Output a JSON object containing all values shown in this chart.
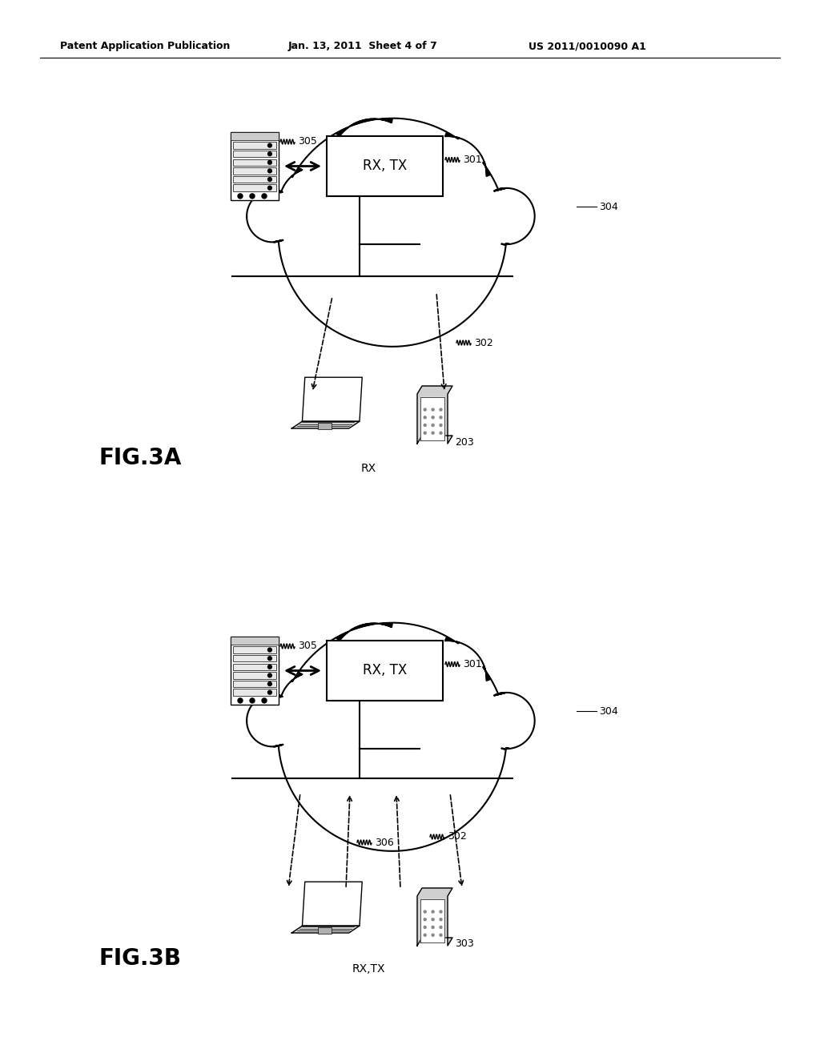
{
  "bg_color": "#ffffff",
  "header_text": "Patent Application Publication",
  "header_date": "Jan. 13, 2011  Sheet 4 of 7",
  "header_patent": "US 2011/0010090 A1",
  "fig3a_label": "FIG.3A",
  "fig3b_label": "FIG.3B",
  "label_301": "301",
  "label_302": "302",
  "label_303": "303",
  "label_304": "304",
  "label_305": "305",
  "label_306": "306",
  "rx_tx_label": "RX, TX",
  "rx_label": "RX",
  "rxtx_label": "RX,TX",
  "label_203": "203",
  "line_color": "#000000",
  "lw_main": 1.5,
  "lw_thin": 1.0
}
